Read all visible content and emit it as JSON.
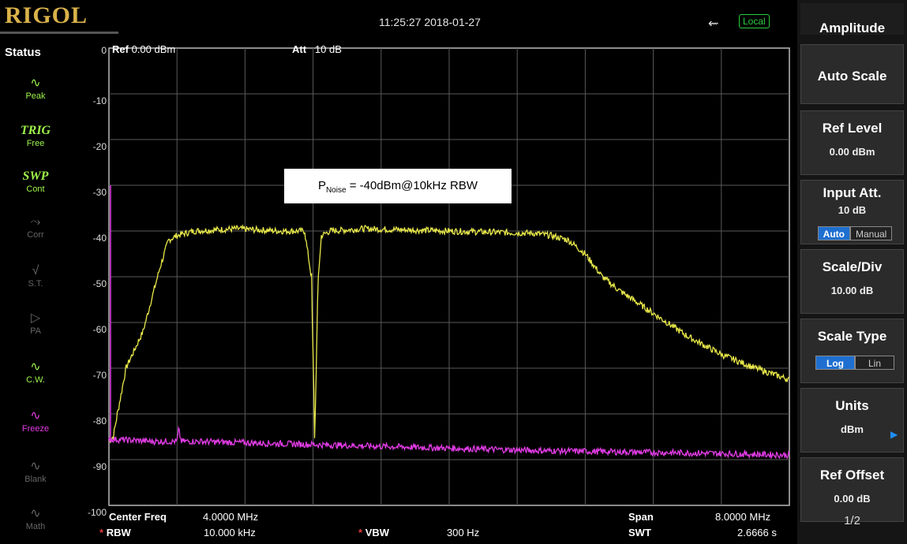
{
  "header": {
    "brand": "RIGOL",
    "datetime": "11:25:27 2018-01-27",
    "usb_icon": "usb-icon",
    "remote_status": "Local"
  },
  "status_panel": {
    "title": "Status",
    "items": [
      {
        "glyph": "peak-icon",
        "label": "Peak",
        "top_text": ""
      },
      {
        "glyph": "",
        "label": "Free",
        "top_text": "TRIG"
      },
      {
        "glyph": "",
        "label": "Cont",
        "top_text": "SWP"
      },
      {
        "glyph": "corr-icon",
        "label": "Corr",
        "top_text": ""
      },
      {
        "glyph": "st-icon",
        "label": "S.T.",
        "top_text": ""
      },
      {
        "glyph": "pa-icon",
        "label": "PA",
        "top_text": ""
      },
      {
        "glyph": "cw-icon",
        "label": "C.W.",
        "top_text": ""
      },
      {
        "glyph": "freeze-icon",
        "label": "Freeze",
        "top_text": ""
      },
      {
        "glyph": "blank-icon",
        "label": "Blank",
        "top_text": ""
      },
      {
        "glyph": "math-icon",
        "label": "Math",
        "top_text": ""
      }
    ]
  },
  "measurement": {
    "ref_label": "Ref",
    "ref_value": "0.00 dBm",
    "att_label": "Att",
    "att_value": "10 dB",
    "center_freq_label": "Center Freq",
    "center_freq_value": "4.0000 MHz",
    "span_label": "Span",
    "span_value": "8.0000 MHz",
    "rbw_label": "RBW",
    "rbw_value": "10.000 kHz",
    "vbw_label": "VBW",
    "vbw_value": "300 Hz",
    "swt_label": "SWT",
    "swt_value": "2.6666 s"
  },
  "annotation": {
    "prefix": "P",
    "subscript": "Noise",
    "text": " = -40dBm@10kHz RBW"
  },
  "chart_data": {
    "type": "line",
    "xlim": [
      0,
      8
    ],
    "ylim": [
      -100,
      0
    ],
    "y_ticks": [
      "0",
      "-10",
      "-20",
      "-30",
      "-40",
      "-50",
      "-60",
      "-70",
      "-80",
      "-90",
      "-100"
    ],
    "grid": true,
    "series": [
      {
        "color": "#e8e84a",
        "x": [
          0.0,
          0.05,
          0.1,
          0.15,
          0.2,
          0.3,
          0.4,
          0.5,
          0.6,
          0.7,
          0.8,
          1.0,
          1.5,
          2.0,
          2.3,
          2.38,
          2.42,
          2.46,
          2.5,
          2.6,
          3.0,
          4.0,
          5.0,
          5.2,
          5.4,
          5.6,
          5.8,
          6.0,
          6.4,
          6.8,
          7.2,
          7.6,
          8.0
        ],
        "y": [
          -86.0,
          -85.0,
          -80.0,
          -75.0,
          -70.0,
          -66.0,
          -62.0,
          -55.0,
          -48.0,
          -42.0,
          -41.0,
          -40.0,
          -39.5,
          -40.0,
          -40.0,
          -50.0,
          -85.0,
          -50.0,
          -41.0,
          -40.0,
          -39.5,
          -40.0,
          -40.5,
          -41.0,
          -42.0,
          -45.0,
          -50.0,
          -53.0,
          -58.0,
          -63.0,
          -67.0,
          -70.0,
          -72.5
        ]
      },
      {
        "color": "#e23ce6",
        "x": [
          0.0,
          0.5,
          0.8,
          0.82,
          0.85,
          1.0,
          2.0,
          3.0,
          4.0,
          5.0,
          6.0,
          7.0,
          8.0
        ],
        "y": [
          -85.5,
          -86.0,
          -86.0,
          -83.5,
          -86.0,
          -86.0,
          -86.5,
          -87.0,
          -87.5,
          -88.0,
          -88.3,
          -88.6,
          -89.0
        ]
      }
    ]
  },
  "menu": {
    "title": "Amplitude",
    "auto_scale": "Auto Scale",
    "ref_level_label": "Ref Level",
    "ref_level_value": "0.00 dBm",
    "input_att_label": "Input Att.",
    "input_att_value": "10 dB",
    "input_att_auto": "Auto",
    "input_att_manual": "Manual",
    "scale_div_label": "Scale/Div",
    "scale_div_value": "10.00 dB",
    "scale_type_label": "Scale Type",
    "scale_type_log": "Log",
    "scale_type_lin": "Lin",
    "units_label": "Units",
    "units_value": "dBm",
    "ref_offset_label": "Ref Offset",
    "ref_offset_value": "0.00 dB",
    "page": "1/2"
  }
}
